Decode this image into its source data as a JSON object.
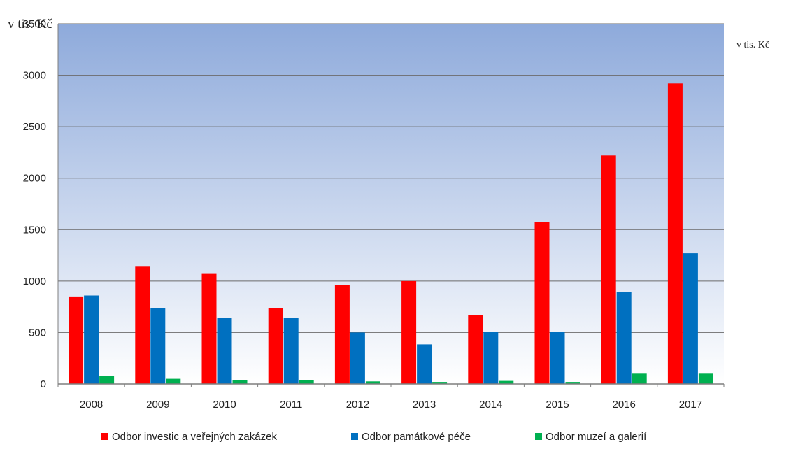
{
  "chart_data": {
    "type": "bar",
    "unit_label": "v tis. Kč",
    "categories": [
      "2008",
      "2009",
      "2010",
      "2011",
      "2012",
      "2013",
      "2014",
      "2015",
      "2016",
      "2017"
    ],
    "series": [
      {
        "name": "Odbor investic a veřejných zakázek",
        "color": "#ff0000",
        "values": [
          850,
          1140,
          1070,
          740,
          960,
          1000,
          670,
          1570,
          2220,
          2920
        ]
      },
      {
        "name": "Odbor památkové péče",
        "color": "#0070c0",
        "values": [
          860,
          740,
          640,
          640,
          500,
          385,
          505,
          505,
          895,
          1270
        ]
      },
      {
        "name": "Odbor muzeí a galerií",
        "color": "#00b050",
        "values": [
          75,
          50,
          40,
          40,
          25,
          20,
          30,
          20,
          100,
          100
        ]
      }
    ],
    "ylim": [
      0,
      3500
    ],
    "yticks": [
      "0",
      "500",
      "1000",
      "1500",
      "2000",
      "2500",
      "3000",
      "3500"
    ],
    "grid": true,
    "legend_position": "bottom",
    "plot_background": [
      "#8eaadb",
      "#ffffff"
    ]
  }
}
